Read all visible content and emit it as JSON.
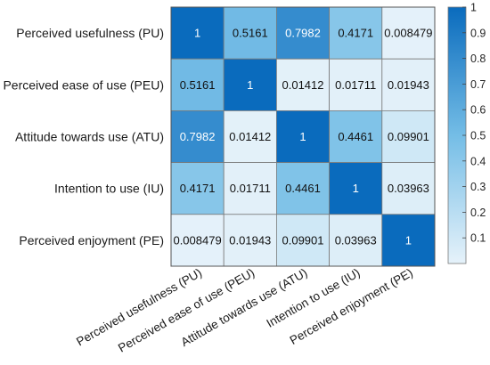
{
  "chart_data": {
    "type": "heatmap",
    "title": "",
    "row_labels": [
      "Perceived usefulness (PU)",
      "Perceived ease of use (PEU)",
      "Attitude towards use (ATU)",
      "Intention to use (IU)",
      "Perceived enjoyment (PE)"
    ],
    "col_labels": [
      "Perceived usefulness (PU)",
      "Perceived ease of use (PEU)",
      "Attitude towards use (ATU)",
      "Intention to use (IU)",
      "Perceived enjoyment (PE)"
    ],
    "values": [
      [
        1,
        0.5161,
        0.7982,
        0.4171,
        0.008479
      ],
      [
        0.5161,
        1,
        0.01412,
        0.01711,
        0.01943
      ],
      [
        0.7982,
        0.01412,
        1,
        0.4461,
        0.09901
      ],
      [
        0.4171,
        0.01711,
        0.4461,
        1,
        0.03963
      ],
      [
        0.008479,
        0.01943,
        0.09901,
        0.03963,
        1
      ]
    ],
    "cell_labels": [
      [
        "1",
        "0.5161",
        "0.7982",
        "0.4171",
        "0.008479"
      ],
      [
        "0.5161",
        "1",
        "0.01412",
        "0.01711",
        "0.01943"
      ],
      [
        "0.7982",
        "0.01412",
        "1",
        "0.4461",
        "0.09901"
      ],
      [
        "0.4171",
        "0.01711",
        "0.4461",
        "1",
        "0.03963"
      ],
      [
        "0.008479",
        "0.01943",
        "0.09901",
        "0.03963",
        "1"
      ]
    ],
    "colorbar": {
      "range": [
        0,
        1
      ],
      "ticks": [
        0.1,
        0.2,
        0.3,
        0.4,
        0.5,
        0.6,
        0.7,
        0.8,
        0.9,
        1
      ],
      "tick_labels": [
        "0.1",
        "0.2",
        "0.3",
        "0.4",
        "0.5",
        "0.6",
        "0.7",
        "0.8",
        "0.9",
        "1"
      ],
      "color_low": "#e6f2fa",
      "color_mid": "#74bde6",
      "color_high": "#0a6bbd"
    },
    "grid": true,
    "legend": "colorbar-right"
  }
}
